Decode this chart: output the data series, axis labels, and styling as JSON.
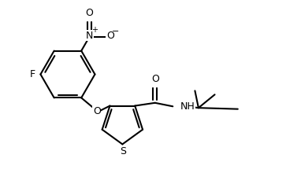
{
  "bg_color": "#ffffff",
  "line_color": "#000000",
  "lw": 1.5,
  "fs": 9.0,
  "figsize": [
    3.82,
    2.34
  ],
  "dpi": 100,
  "xlim": [
    0,
    10
  ],
  "ylim": [
    0,
    6.2
  ]
}
